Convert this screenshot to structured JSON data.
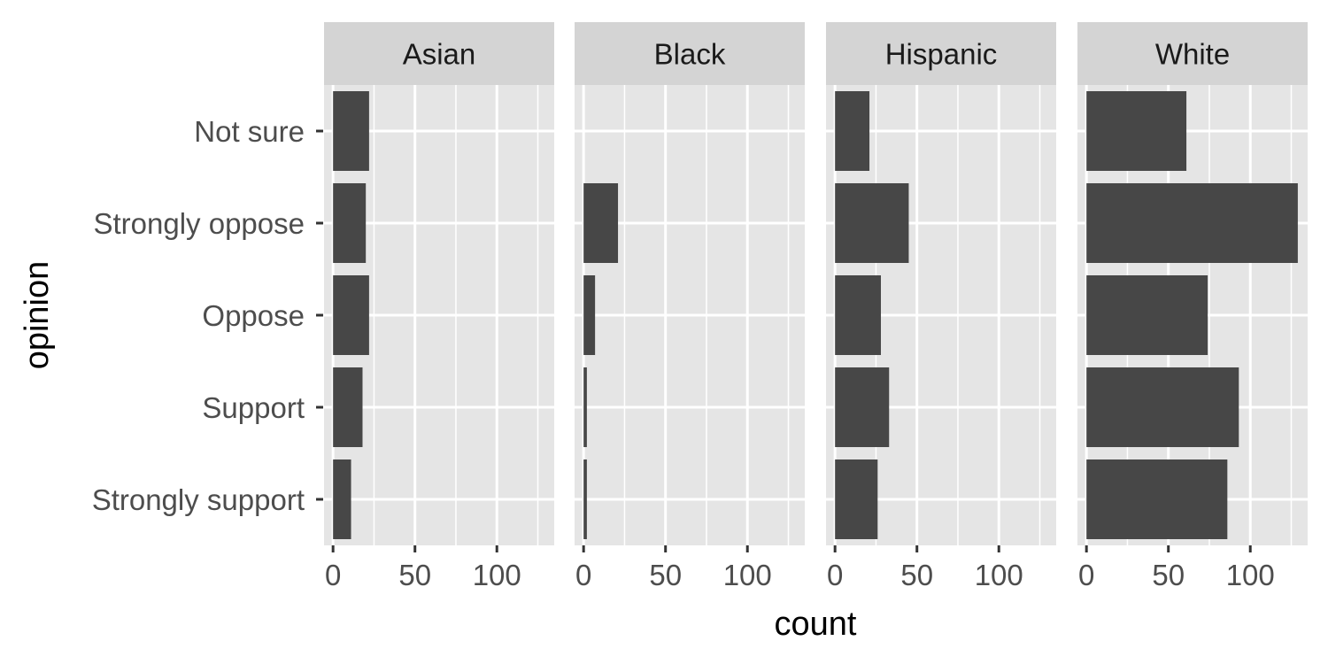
{
  "chart_data": {
    "type": "bar",
    "orientation": "horizontal",
    "faceted": true,
    "xlabel": "count",
    "ylabel": "opinion",
    "categories": [
      "Not sure",
      "Strongly oppose",
      "Oppose",
      "Support",
      "Strongly support"
    ],
    "x_ticks": [
      "0",
      "50",
      "100"
    ],
    "x_tick_values": [
      0,
      50,
      100
    ],
    "xlim": [
      -5.5,
      135
    ],
    "grid": true,
    "panels": [
      {
        "name": "Asian",
        "values": [
          22,
          20,
          22,
          18,
          11
        ]
      },
      {
        "name": "Black",
        "values": [
          0,
          21,
          7,
          2,
          2
        ]
      },
      {
        "name": "Hispanic",
        "values": [
          21,
          45,
          28,
          33,
          26
        ]
      },
      {
        "name": "White",
        "values": [
          61,
          129,
          74,
          93,
          86
        ]
      }
    ],
    "colors": {
      "bar": "#474747",
      "panel_background": "#e5e5e5",
      "strip_background": "#d4d4d4",
      "grid": "#ffffff",
      "tick_text": "#4d4d4d",
      "title_text": "#000000"
    }
  }
}
